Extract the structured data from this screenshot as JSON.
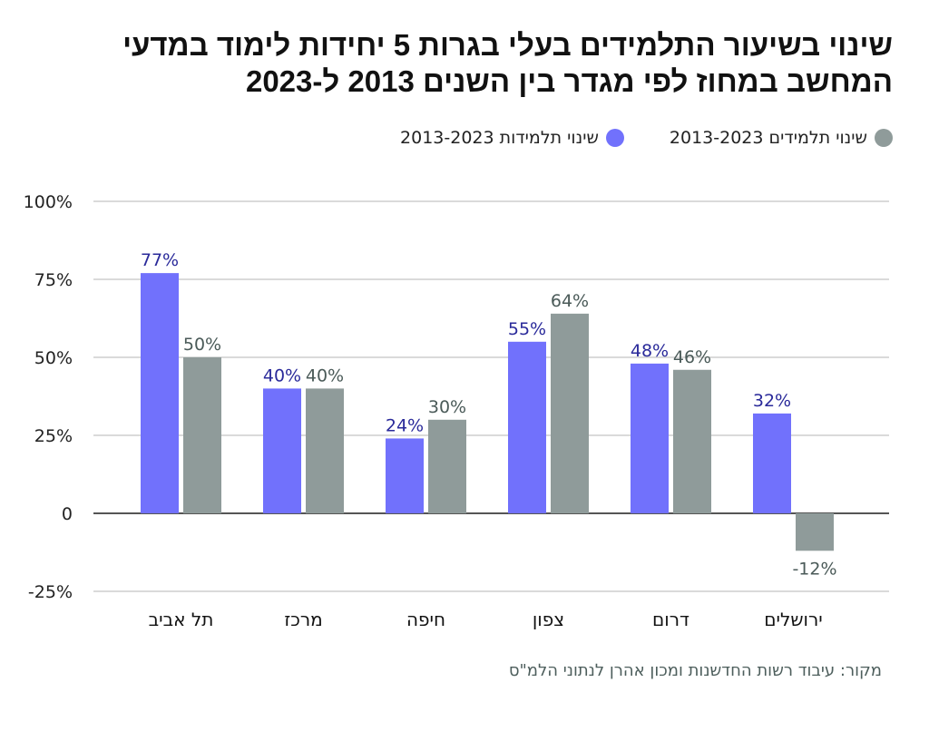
{
  "chart_data": {
    "type": "bar",
    "title": "שינוי בשיעור התלמידים בעלי בגרות 5 יחידות לימוד במדעי המחשב במחוז לפי מגדר בין השנים 2013 ל-2023",
    "title_lines": [
      "שינוי בשיעור התלמידים בעלי בגרות 5 יחידות לימוד במדעי",
      "המחשב במחוז לפי מגדר בין השנים 2013 ל-2023"
    ],
    "categories": [
      "תל אביב",
      "מרכז",
      "חיפה",
      "צפון",
      "דרום",
      "ירושלים"
    ],
    "series": [
      {
        "name": "שינוי תלמידות 2013-2023",
        "color": "#7171fc",
        "label_color": "#2a2a9a",
        "values": [
          77,
          40,
          24,
          55,
          48,
          32
        ]
      },
      {
        "name": "שינוי תלמידים 2013-2023",
        "color": "#8f9b9a",
        "label_color": "#4a5a58",
        "values": [
          50,
          40,
          30,
          64,
          46,
          -12
        ]
      }
    ],
    "yticks": [
      100,
      75,
      50,
      25,
      0,
      -25
    ],
    "ytick_labels": [
      "100%",
      "75%",
      "50%",
      "25%",
      "0",
      "-25%"
    ],
    "ylim": [
      -25,
      100
    ],
    "value_suffix": "%",
    "xlabel": "",
    "ylabel": "",
    "grid": true,
    "legend_position": "top-right",
    "source": "מקור: עיבוד רשות החדשנות ומכון אהרן לנתוני הלמ\"ס"
  }
}
